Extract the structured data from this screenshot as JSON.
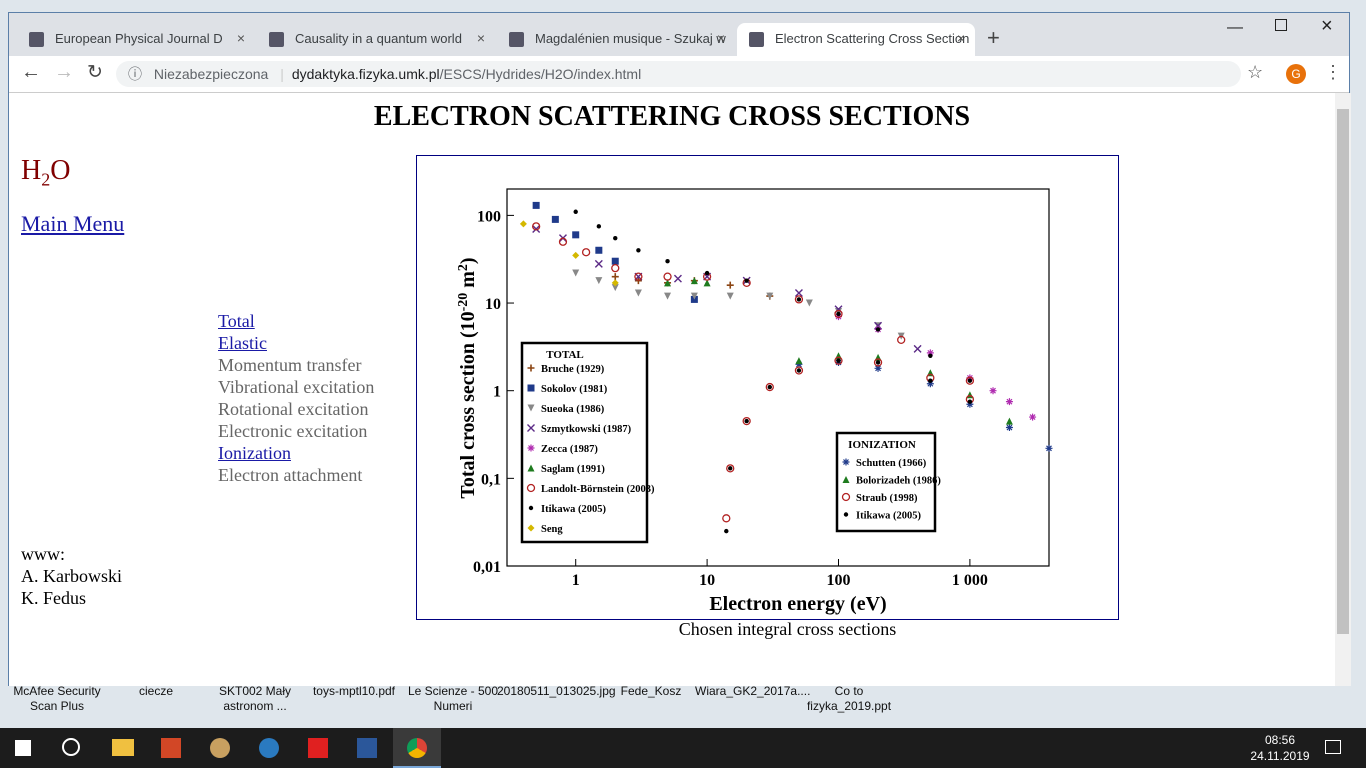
{
  "browser": {
    "tabs": [
      "European Physical Journal D",
      "Causality in a quantum world",
      "Magdalénien musique - Szukaj w",
      "Electron Scattering Cross Section"
    ],
    "active_tab": 3,
    "security": "Niezabezpieczona",
    "host": "dydaktyka.fizyka.umk.pl",
    "path": "/ESCS/Hydrides/H2O/index.html",
    "profile": "G"
  },
  "page": {
    "title": "ELECTRON SCATTERING CROSS SECTIONS",
    "molecule": [
      "H",
      "2",
      "O"
    ],
    "main_menu": "Main Menu",
    "menu": [
      {
        "label": "Total",
        "link": true
      },
      {
        "label": "Elastic",
        "link": true
      },
      {
        "label": "Momentum transfer",
        "link": false
      },
      {
        "label": "Vibrational excitation",
        "link": false
      },
      {
        "label": "Rotational excitation",
        "link": false
      },
      {
        "label": "Electronic excitation",
        "link": false
      },
      {
        "label": "Ionization",
        "link": true
      },
      {
        "label": "Electron attachment",
        "link": false
      }
    ],
    "credits": [
      "www:",
      "A. Karbowski",
      "K. Fedus"
    ],
    "caption": "Chosen integral cross sections"
  },
  "chart_data": {
    "type": "scatter",
    "xlabel": "Electron energy (eV)",
    "ylabel": [
      "Total cross section (10",
      "-20",
      " m",
      "2",
      ")"
    ],
    "xlog": true,
    "ylog": true,
    "xlim": [
      0.3,
      4000
    ],
    "ylim": [
      0.01,
      200
    ],
    "xticks": [
      1,
      10,
      100,
      {
        "value": 1000,
        "label": "1 000"
      }
    ],
    "yticks": [
      {
        "value": 0.01,
        "label": "0,01"
      },
      {
        "value": 0.1,
        "label": "0,1"
      },
      1,
      10,
      100
    ],
    "series_groups": [
      {
        "title": "TOTAL",
        "series": [
          {
            "name": "Bruche (1929)",
            "marker": "plus",
            "color": "#8b4513",
            "x": [
              2,
              3,
              5,
              8,
              15,
              30
            ],
            "values": [
              20,
              18,
              17,
              18,
              16,
              12
            ]
          },
          {
            "name": "Sokolov (1981)",
            "marker": "square",
            "color": "#1f3a8a",
            "x": [
              0.5,
              0.7,
              1,
              1.5,
              2,
              8
            ],
            "values": [
              130,
              90,
              60,
              40,
              30,
              11
            ]
          },
          {
            "name": "Sueoka (1986)",
            "marker": "triangle-down",
            "color": "#888888",
            "x": [
              1,
              1.5,
              2,
              3,
              5,
              8,
              15,
              30,
              60,
              100,
              200,
              300
            ],
            "values": [
              22,
              18,
              15,
              13,
              12,
              12,
              12,
              12,
              10,
              8,
              5.5,
              4.2
            ]
          },
          {
            "name": "Szmytkowski (1987)",
            "marker": "x",
            "color": "#5b2a86",
            "x": [
              0.5,
              0.8,
              1.5,
              3,
              6,
              10,
              20,
              50,
              100,
              200,
              400
            ],
            "values": [
              70,
              55,
              28,
              20,
              19,
              20,
              18,
              13,
              8.5,
              5.5,
              3
            ]
          },
          {
            "name": "Zecca (1987)",
            "marker": "star",
            "color": "#b02cb0",
            "x": [
              100,
              200,
              500,
              1000,
              1500,
              2000,
              3000
            ],
            "values": [
              7,
              5,
              2.7,
              1.4,
              1,
              0.75,
              0.5
            ]
          },
          {
            "name": "Saglam (1991)",
            "marker": "triangle",
            "color": "#1e7b1e",
            "x": [
              5,
              8,
              10
            ],
            "values": [
              17,
              18,
              17
            ]
          },
          {
            "name": "Landolt-Börnstein (2003)",
            "marker": "circle-open",
            "color": "#b22222",
            "x": [
              0.5,
              0.8,
              1.2,
              2,
              3,
              5,
              10,
              20,
              50,
              100,
              300,
              1000
            ],
            "values": [
              75,
              50,
              38,
              25,
              20,
              20,
              20,
              17,
              11,
              7.5,
              3.8,
              1.3
            ]
          },
          {
            "name": "Itikawa (2005)",
            "marker": "dot",
            "color": "#000000",
            "x": [
              1,
              1.5,
              2,
              3,
              5,
              10,
              20,
              50,
              100,
              200,
              500,
              1000
            ],
            "values": [
              110,
              75,
              55,
              40,
              30,
              22,
              18,
              11,
              7.5,
              5,
              2.5,
              1.3
            ]
          },
          {
            "name": "Seng",
            "marker": "diamond",
            "color": "#d4b800",
            "x": [
              0.4,
              1,
              2
            ],
            "values": [
              80,
              35,
              17
            ]
          }
        ]
      },
      {
        "title": "IONIZATION",
        "series": [
          {
            "name": "Schutten (1966)",
            "marker": "star",
            "color": "#1f3a8a",
            "x": [
              50,
              100,
              200,
              500,
              1000,
              2000,
              4000
            ],
            "values": [
              2,
              2.1,
              1.8,
              1.2,
              0.7,
              0.38,
              0.22
            ]
          },
          {
            "name": "Bolorizadeh (1986)",
            "marker": "triangle",
            "color": "#1e7b1e",
            "x": [
              50,
              100,
              200,
              500,
              1000,
              2000
            ],
            "values": [
              2.2,
              2.5,
              2.4,
              1.6,
              0.9,
              0.45
            ]
          },
          {
            "name": "Straub (1998)",
            "marker": "circle-open",
            "color": "#b22222",
            "x": [
              14,
              15,
              20,
              30,
              50,
              100,
              200,
              500,
              1000
            ],
            "values": [
              0.035,
              0.13,
              0.45,
              1.1,
              1.7,
              2.2,
              2.1,
              1.4,
              0.8
            ]
          },
          {
            "name": "Itikawa (2005)",
            "marker": "dot",
            "color": "#000000",
            "x": [
              14,
              15,
              20,
              30,
              50,
              100,
              200,
              500,
              1000
            ],
            "values": [
              0.025,
              0.13,
              0.45,
              1.1,
              1.7,
              2.2,
              2.1,
              1.3,
              0.75
            ]
          }
        ]
      }
    ]
  },
  "desktop": {
    "icons": [
      "McAfee Security Scan Plus",
      "ciecze",
      "SKT002 Mały astronom ...",
      "toys-mptl10.pdf",
      "Le Scienze - 500 Numeri",
      "20180511_013025.jpg",
      "Fede_Kosz",
      "Wiara_GK2_2017a....",
      "Co to fizyka_2019.ppt"
    ]
  },
  "taskbar": {
    "time": "08:56",
    "date": "24.11.2019"
  }
}
